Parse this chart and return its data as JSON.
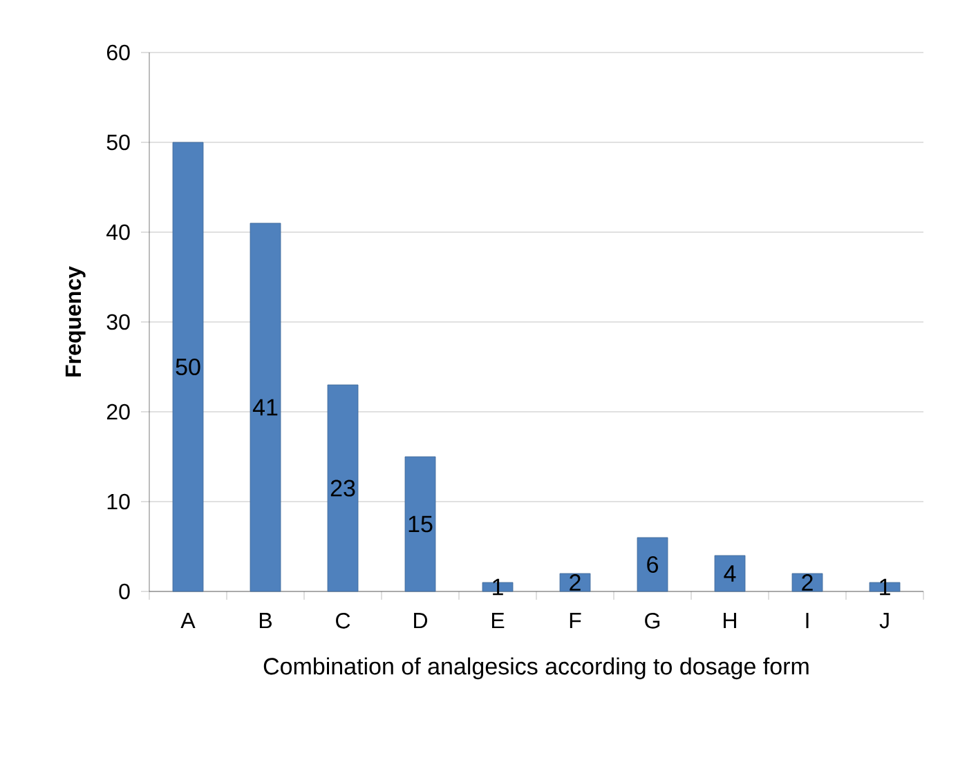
{
  "chart_data": {
    "type": "bar",
    "xlabel": "Combination of analgesics according to dosage form",
    "ylabel": "Frequency",
    "categories": [
      "A",
      "B",
      "C",
      "D",
      "E",
      "F",
      "G",
      "H",
      "I",
      "J"
    ],
    "values": [
      50,
      41,
      23,
      15,
      1,
      2,
      6,
      4,
      2,
      1
    ],
    "color": "#4f81bd",
    "ylim": [
      0,
      60
    ],
    "yticks": [
      0,
      10,
      20,
      30,
      40,
      50,
      60
    ],
    "grid": "y",
    "data_labels": true
  }
}
